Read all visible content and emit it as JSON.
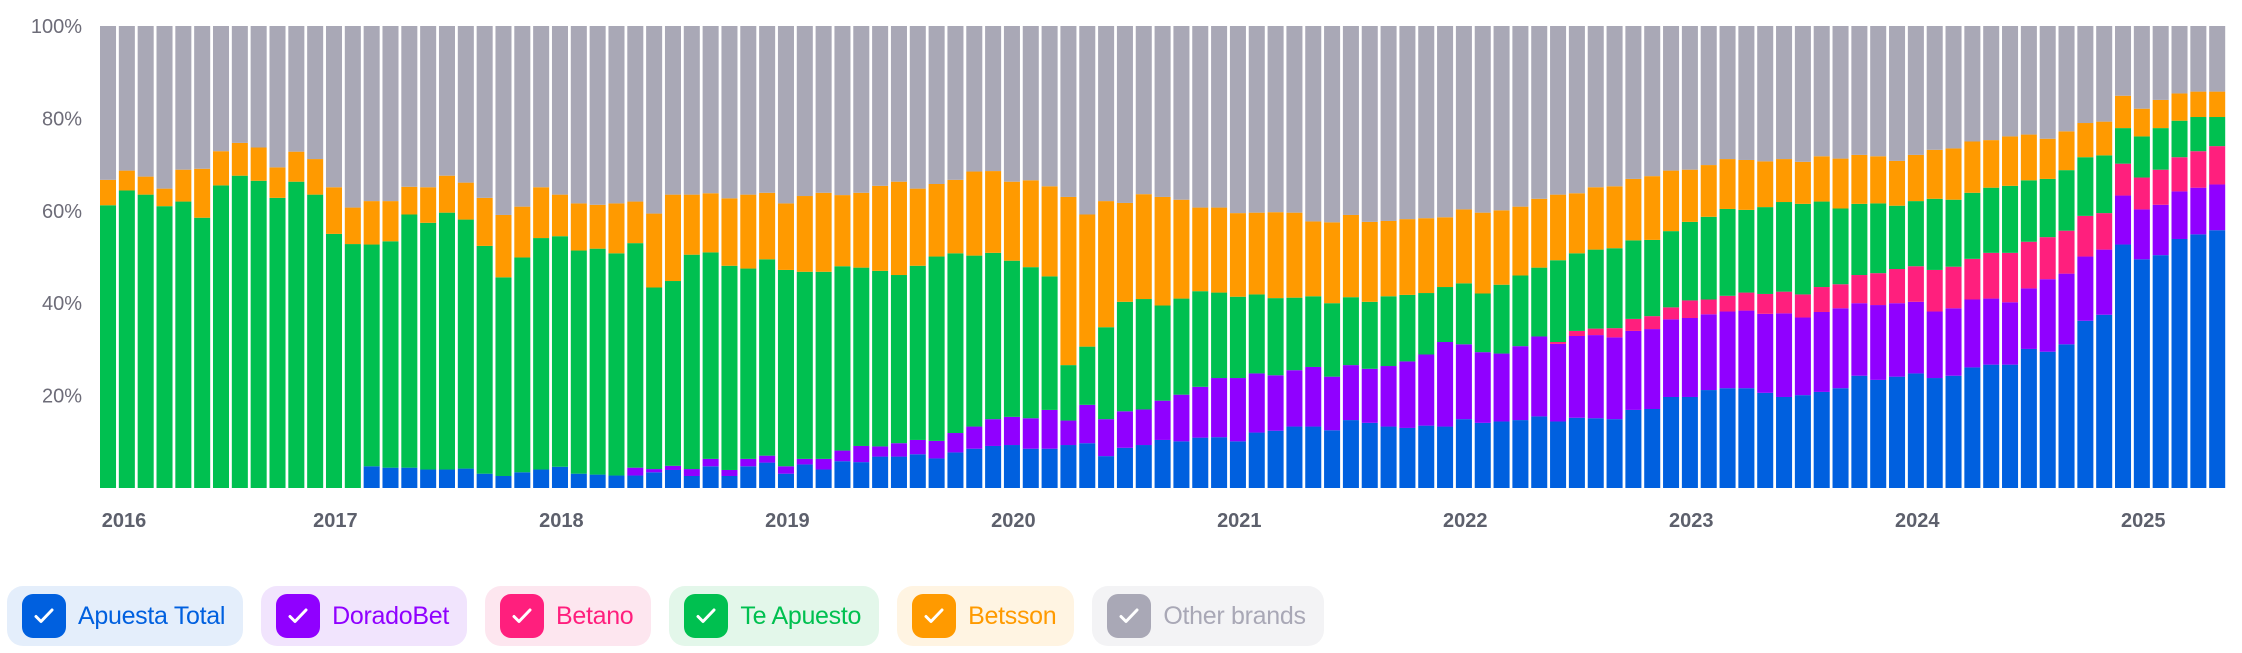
{
  "chart_data": {
    "type": "bar",
    "stacked": true,
    "normalized_percent": true,
    "start_month": "2016-01",
    "month_count": 113,
    "ylim": [
      0,
      100
    ],
    "y_ticks": [
      "20%",
      "40%",
      "60%",
      "80%",
      "100%"
    ],
    "y_tick_values": [
      20,
      40,
      60,
      80,
      100
    ],
    "x_tick_labels": [
      "2016",
      "2017",
      "2018",
      "2019",
      "2020",
      "2021",
      "2022",
      "2023",
      "2024",
      "2025"
    ],
    "x_tick_month_index": [
      0,
      12,
      24,
      36,
      48,
      60,
      72,
      84,
      96,
      108
    ],
    "legend_position": "bottom-left",
    "series": [
      {
        "name": "Apuesta Total",
        "color": "#0060df",
        "bg": "#e4eefb",
        "values": [
          0,
          0,
          0,
          0,
          0,
          0,
          0,
          0,
          0,
          0,
          0,
          0,
          0,
          0,
          4.7,
          4.4,
          4.4,
          4.0,
          4.0,
          4.2,
          3.1,
          2.6,
          3.4,
          4.0,
          4.6,
          3.1,
          2.9,
          2.7,
          2.7,
          3.4,
          3.9,
          2.6,
          4.7,
          2.6,
          4.7,
          5.5,
          3.1,
          5.1,
          4.0,
          5.8,
          5.6,
          6.8,
          6.8,
          7.3,
          6.4,
          7.7,
          8.5,
          9.1,
          9.3,
          8.5,
          8.5,
          9.3,
          9.7,
          6.9,
          8.7,
          9.3,
          10.4,
          10.1,
          10.9,
          11.0,
          10.1,
          12.0,
          12.4,
          13.3,
          13.3,
          12.5,
          14.7,
          14.1,
          13.3,
          13.0,
          13.5,
          13.3,
          14.9,
          14.1,
          14.4,
          14.7,
          15.5,
          14.4,
          15.2,
          15.1,
          14.9,
          16.9,
          17.1,
          19.7,
          19.7,
          21.2,
          21.6,
          21.6,
          20.6,
          19.7,
          20.1,
          20.8,
          21.6,
          24.3,
          23.4,
          24.1,
          24.8,
          23.8,
          24.3,
          26.1,
          26.7,
          26.7,
          30.1,
          29.5,
          31.1,
          36.2,
          37.5,
          52.7,
          49.5,
          50.4,
          53.9,
          54.9,
          55.8
        ]
      },
      {
        "name": "DoradoBet",
        "color": "#9000ff",
        "bg": "#f1e4fd",
        "values": [
          0,
          0,
          0,
          0,
          0,
          0,
          0,
          0,
          0,
          0,
          0,
          0,
          0,
          0,
          0,
          0,
          0,
          0,
          0,
          0,
          0,
          0,
          0,
          0,
          0,
          0,
          0,
          0,
          1.7,
          0.7,
          0.9,
          1.5,
          1.6,
          1.3,
          1.6,
          1.5,
          1.6,
          1.2,
          2.3,
          2.3,
          3.5,
          2.2,
          2.9,
          3.1,
          3.8,
          4.2,
          4.8,
          5.8,
          6.1,
          6.6,
          8.4,
          5.3,
          8.3,
          8.0,
          7.9,
          7.7,
          8.5,
          10.1,
          11.0,
          12.8,
          13.7,
          12.8,
          12.0,
          12.2,
          12.9,
          11.6,
          11.9,
          11.7,
          13.1,
          14.4,
          15.4,
          18.3,
          16.2,
          15.3,
          14.7,
          16.0,
          17.3,
          16.8,
          17.7,
          18.0,
          17.7,
          17.1,
          17.3,
          16.8,
          17.1,
          16.4,
          16.6,
          16.8,
          17.1,
          18.1,
          16.8,
          17.3,
          17.3,
          15.7,
          16.2,
          15.9,
          15.5,
          14.4,
          14.6,
          14.7,
          14.3,
          13.5,
          13.1,
          15.7,
          15.3,
          13.9,
          14.1,
          10.6,
          10.8,
          10.9,
          10.3,
          10.1,
          9.9
        ]
      },
      {
        "name": "Betano",
        "color": "#ff1f7d",
        "bg": "#fde6ef",
        "values": [
          0,
          0,
          0,
          0,
          0,
          0,
          0,
          0,
          0,
          0,
          0,
          0,
          0,
          0,
          0,
          0,
          0,
          0,
          0,
          0,
          0,
          0,
          0,
          0,
          0,
          0,
          0,
          0,
          0,
          0,
          0,
          0,
          0,
          0,
          0,
          0,
          0,
          0,
          0,
          0,
          0,
          0,
          0,
          0,
          0,
          0,
          0,
          0,
          0,
          0,
          0,
          0,
          0,
          0,
          0,
          0,
          0,
          0,
          0,
          0,
          0,
          0,
          0,
          0,
          0,
          0,
          0,
          0,
          0,
          0,
          0,
          0,
          0,
          0,
          0,
          0,
          0,
          0.4,
          1.1,
          1.4,
          2.0,
          2.6,
          2.8,
          2.6,
          3.8,
          3.2,
          3.4,
          3.9,
          4.3,
          4.7,
          5.0,
          5.4,
          5.2,
          6.1,
          6.9,
          7.4,
          7.7,
          9.0,
          9.0,
          8.8,
          9.9,
          10.7,
          10.1,
          9.1,
          9.3,
          8.8,
          7.9,
          6.9,
          6.9,
          7.6,
          7.4,
          7.9,
          8.3
        ]
      },
      {
        "name": "Te Apuesto",
        "color": "#00c050",
        "bg": "#e3f7ea",
        "values": [
          61.2,
          64.4,
          63.5,
          61.0,
          62.0,
          58.5,
          65.5,
          67.6,
          66.5,
          62.8,
          66.3,
          63.5,
          55.0,
          52.8,
          48.0,
          49.0,
          54.8,
          53.4,
          55.6,
          53.9,
          49.3,
          43.0,
          46.5,
          50.1,
          49.9,
          48.3,
          48.9,
          48.1,
          48.6,
          39.3,
          40.0,
          46.4,
          44.7,
          44.2,
          41.2,
          42.5,
          42.5,
          40.5,
          40.5,
          39.9,
          38.6,
          38.0,
          36.4,
          37.7,
          39.9,
          38.9,
          37.0,
          36.0,
          33.8,
          32.7,
          28.9,
          12.0,
          12.6,
          19.9,
          23.7,
          23.9,
          20.6,
          20.8,
          20.7,
          18.5,
          17.6,
          17.1,
          16.7,
          15.7,
          15.3,
          15.9,
          14.7,
          14.5,
          15.1,
          14.4,
          13.3,
          11.9,
          13.2,
          12.7,
          14.9,
          15.3,
          14.9,
          17.7,
          16.8,
          17.1,
          17.3,
          17.0,
          16.5,
          16.5,
          17.0,
          17.9,
          18.8,
          17.9,
          18.8,
          19.4,
          19.6,
          18.5,
          16.4,
          15.4,
          15.1,
          13.7,
          14.1,
          15.4,
          14.5,
          14.3,
          14.1,
          14.5,
          13.3,
          12.6,
          13.1,
          12.7,
          12.5,
          7.7,
          8.9,
          9.0,
          7.9,
          7.4,
          6.3
        ]
      },
      {
        "name": "Betsson",
        "color": "#ff9a00",
        "bg": "#fff4e2",
        "values": [
          5.5,
          4.3,
          3.9,
          3.8,
          6.9,
          10.6,
          7.4,
          7.1,
          7.2,
          6.6,
          6.5,
          7.7,
          10.1,
          7.9,
          9.4,
          8.7,
          6.0,
          7.7,
          8.0,
          8.0,
          10.4,
          13.5,
          11.0,
          11.0,
          9.0,
          10.2,
          9.5,
          10.8,
          9.0,
          16.0,
          18.7,
          13.0,
          12.8,
          14.6,
          16.0,
          14.4,
          14.4,
          16.4,
          17.1,
          15.4,
          16.2,
          18.4,
          20.2,
          16.7,
          15.7,
          15.9,
          18.2,
          17.7,
          17.1,
          18.8,
          19.5,
          36.4,
          28.6,
          27.3,
          21.4,
          22.7,
          23.5,
          21.4,
          18.1,
          18.4,
          18.1,
          17.7,
          18.6,
          18.4,
          16.2,
          17.5,
          17.8,
          17.3,
          16.3,
          16.4,
          16.2,
          15.1,
          16.0,
          17.5,
          16.1,
          14.9,
          14.9,
          14.2,
          13.0,
          13.5,
          13.4,
          13.3,
          13.8,
          13.1,
          11.3,
          11.2,
          10.8,
          10.8,
          9.9,
          9.3,
          9.1,
          9.8,
          10.8,
          10.6,
          10.2,
          9.7,
          10.0,
          10.6,
          11.1,
          11.1,
          10.3,
          10.7,
          9.9,
          8.7,
          8.4,
          7.4,
          7.3,
          7.0,
          6.0,
          6.1,
          5.9,
          5.5,
          5.5
        ]
      },
      {
        "name": "Other brands",
        "color": "#a9a8b6",
        "bg": "#f3f3f5",
        "remainder_to_100": true
      }
    ]
  }
}
